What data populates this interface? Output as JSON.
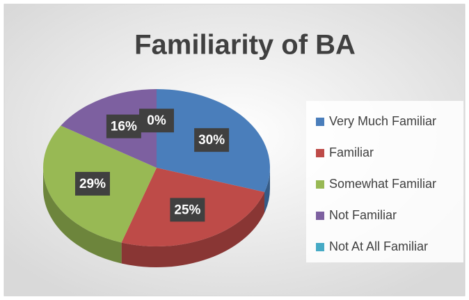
{
  "chart_data": {
    "type": "pie",
    "title": "Familiarity of BA",
    "categories": [
      "Very Much Familiar",
      "Familiar",
      "Somewhat Familiar",
      "Not Familiar",
      "Not At All Familiar"
    ],
    "values": [
      30,
      25,
      29,
      16,
      0
    ],
    "value_labels": [
      "30%",
      "25%",
      "29%",
      "16%",
      "0%"
    ],
    "colors": [
      "#4a7ebb",
      "#be4b48",
      "#98b954",
      "#7d60a0",
      "#46aac5"
    ],
    "legend": "right"
  }
}
